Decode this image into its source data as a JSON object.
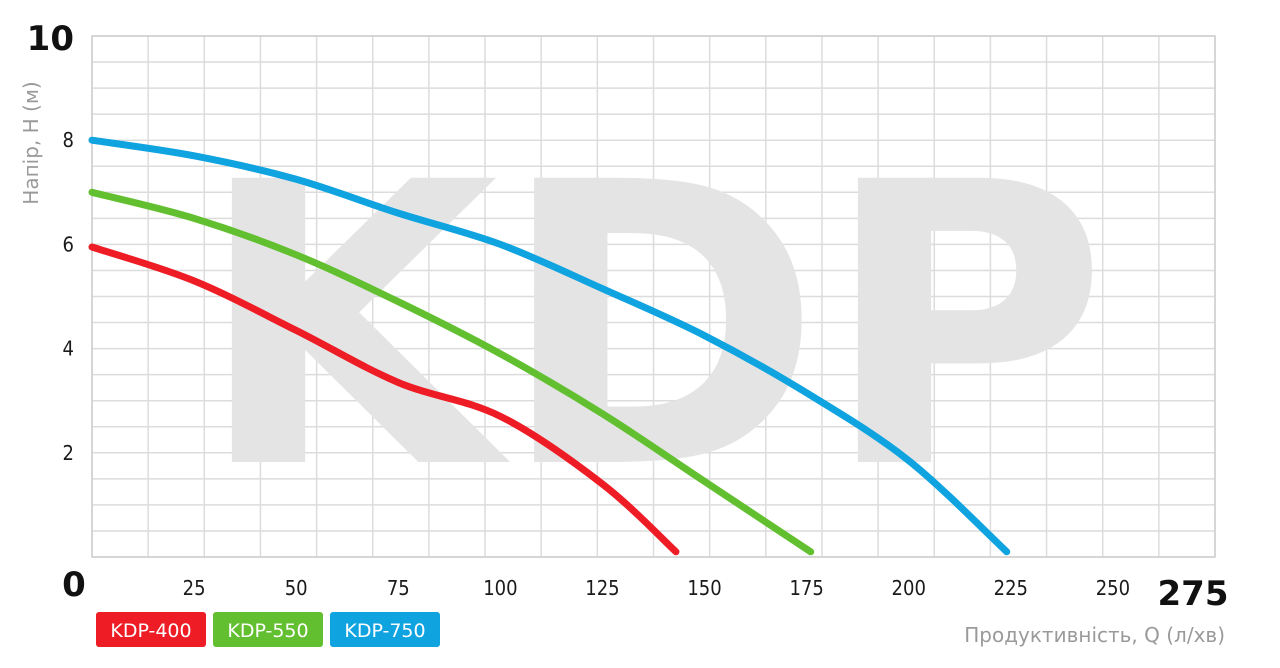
{
  "chart_data": {
    "type": "line",
    "watermark": "KDP",
    "xlabel": "Продуктивність, Q (л/хв)",
    "ylabel": "Напір, H (м)",
    "xlim": [
      0,
      275
    ],
    "ylim": [
      0,
      10
    ],
    "grid": true,
    "x_ticks": [
      "0",
      "25",
      "50",
      "75",
      "100",
      "125",
      "150",
      "175",
      "200",
      "225",
      "250",
      "275"
    ],
    "y_ticks": [
      "2",
      "4",
      "6",
      "8",
      "10"
    ],
    "legend_position": "bottom-left",
    "series": [
      {
        "name": "KDP-400",
        "color": "#ee1c25",
        "points": [
          [
            0,
            5.95
          ],
          [
            25,
            5.3
          ],
          [
            50,
            4.35
          ],
          [
            75,
            3.35
          ],
          [
            100,
            2.7
          ],
          [
            125,
            1.4
          ],
          [
            143,
            0.1
          ]
        ]
      },
      {
        "name": "KDP-550",
        "color": "#62c030",
        "points": [
          [
            0,
            7.0
          ],
          [
            25,
            6.5
          ],
          [
            50,
            5.8
          ],
          [
            75,
            4.9
          ],
          [
            100,
            3.9
          ],
          [
            125,
            2.75
          ],
          [
            150,
            1.45
          ],
          [
            176,
            0.1
          ]
        ]
      },
      {
        "name": "KDP-750",
        "color": "#0fa3e0",
        "points": [
          [
            0,
            8.0
          ],
          [
            25,
            7.7
          ],
          [
            50,
            7.25
          ],
          [
            75,
            6.6
          ],
          [
            100,
            6.0
          ],
          [
            125,
            5.15
          ],
          [
            150,
            4.25
          ],
          [
            175,
            3.15
          ],
          [
            200,
            1.85
          ],
          [
            224,
            0.1
          ]
        ]
      }
    ]
  }
}
